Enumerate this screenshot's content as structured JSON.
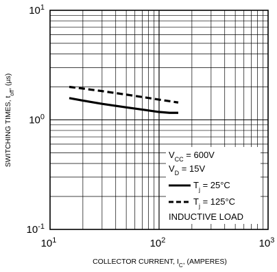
{
  "chart_data": {
    "type": "line",
    "xlabel": "COLLECTOR CURRENT, I_C, (AMPERES)",
    "xlabel_parts": {
      "pre": "COLLECTOR CURRENT, I",
      "sub": "C",
      "post": ", (AMPERES)"
    },
    "ylabel": "SWITCHING TIMES, t_off, (µs)",
    "ylabel_parts": {
      "pre": "SWITCHING TIMES, t",
      "sub": "off",
      "post": ", (µs)"
    },
    "x_scale": "log",
    "y_scale": "log",
    "xlim": [
      10,
      1000
    ],
    "ylim": [
      0.1,
      10
    ],
    "grid": true,
    "x_ticks": [
      {
        "base": "10",
        "exp": "1"
      },
      {
        "base": "10",
        "exp": "2"
      },
      {
        "base": "10",
        "exp": "3"
      }
    ],
    "y_ticks": [
      {
        "base": "10",
        "exp": "1"
      },
      {
        "base": "10",
        "exp": "0"
      },
      {
        "base": "10",
        "exp": "-1"
      }
    ],
    "legend_placement": "bottom-right",
    "conditions": [
      {
        "pre": "V",
        "sub": "CC",
        "post": " = 600V"
      },
      {
        "pre": "V",
        "sub": "D",
        "post": " = 15V"
      }
    ],
    "series": [
      {
        "name": "T_j = 25°C",
        "label_parts": {
          "pre": "T",
          "sub": "j",
          "post": " = 25°C"
        },
        "style": "solid",
        "x": [
          15,
          20,
          30,
          50,
          75,
          100,
          125,
          150
        ],
        "y": [
          1.58,
          1.5,
          1.4,
          1.3,
          1.23,
          1.18,
          1.16,
          1.16
        ]
      },
      {
        "name": "T_j = 125°C",
        "label_parts": {
          "pre": "T",
          "sub": "j",
          "post": " = 125°C"
        },
        "style": "dashed",
        "x": [
          15,
          20,
          30,
          50,
          75,
          100,
          125,
          150
        ],
        "y": [
          2.0,
          1.93,
          1.83,
          1.7,
          1.6,
          1.53,
          1.48,
          1.44
        ]
      }
    ],
    "annotation": "INDUCTIVE LOAD"
  }
}
